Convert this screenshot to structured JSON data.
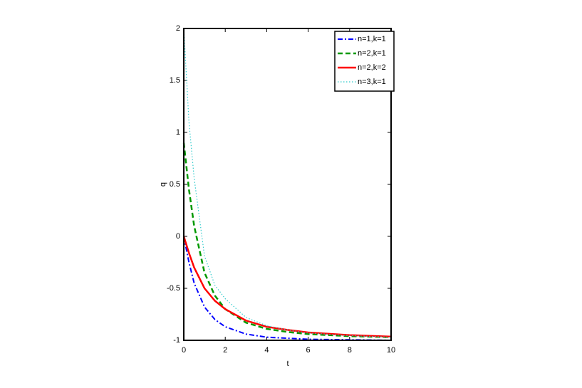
{
  "chart_data": {
    "type": "line",
    "xlabel": "t",
    "ylabel": "q",
    "x": [
      0,
      0.25,
      0.5,
      1,
      1.5,
      2,
      3,
      4,
      5,
      6,
      8,
      10
    ],
    "series": [
      {
        "name": "n=1,k=1",
        "color": "#0000ff",
        "style": "dash-dot",
        "values": [
          0,
          -0.25,
          -0.45,
          -0.68,
          -0.8,
          -0.87,
          -0.94,
          -0.97,
          -0.98,
          -0.99,
          -0.995,
          -1
        ]
      },
      {
        "name": "n=2,k=1",
        "color": "#009900",
        "style": "dashed",
        "values": [
          0.9,
          0.45,
          0.1,
          -0.35,
          -0.57,
          -0.7,
          -0.83,
          -0.89,
          -0.92,
          -0.94,
          -0.96,
          -0.97
        ]
      },
      {
        "name": "n=2,k=2",
        "color": "#ff0000",
        "style": "solid",
        "values": [
          0,
          -0.16,
          -0.3,
          -0.5,
          -0.62,
          -0.7,
          -0.81,
          -0.87,
          -0.9,
          -0.925,
          -0.95,
          -0.965
        ]
      },
      {
        "name": "n=3,k=1",
        "color": "#33cccc",
        "style": "dotted",
        "values": [
          2,
          1.1,
          0.56,
          -0.19,
          -0.47,
          -0.6,
          -0.78,
          -0.86,
          -0.9,
          -0.93,
          -0.955,
          -0.97
        ]
      }
    ],
    "xlim": [
      0,
      10
    ],
    "ylim": [
      -1,
      2
    ],
    "xticks": [
      0,
      2,
      4,
      6,
      8,
      10
    ],
    "yticks": [
      -1,
      -0.5,
      0,
      0.5,
      1,
      1.5,
      2
    ],
    "legend": "upper right",
    "grid": false
  }
}
